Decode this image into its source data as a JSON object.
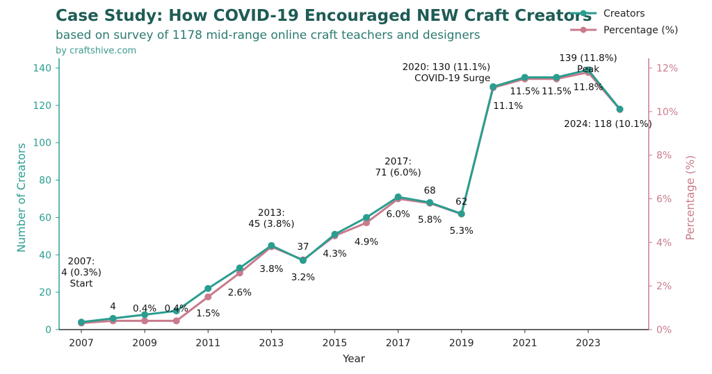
{
  "chart_data": {
    "type": "line",
    "title": "Case Study: How COVID-19 Encouraged NEW Craft Creators",
    "subtitle": "based on survey of 1178 mid-range online craft teachers and designers",
    "source": "by craftshive.com",
    "xlabel": "Year",
    "ylabel": "Number of Creators",
    "y2label": "Percentage (%)",
    "ylim": [
      0,
      145
    ],
    "y2lim": [
      0,
      12.4
    ],
    "xticks": [
      "2007",
      "2009",
      "2011",
      "2013",
      "2015",
      "2017",
      "2019",
      "2021",
      "2023"
    ],
    "yticks": [
      "0",
      "20",
      "40",
      "60",
      "80",
      "100",
      "120",
      "140"
    ],
    "y2ticks": [
      "0%",
      "2%",
      "4%",
      "6%",
      "8%",
      "10%",
      "12%"
    ],
    "grid": false,
    "legend": "top-right",
    "x": [
      2007,
      2008,
      2009,
      2010,
      2011,
      2012,
      2013,
      2014,
      2015,
      2016,
      2017,
      2018,
      2019,
      2020,
      2021,
      2022,
      2023,
      2024
    ],
    "series": [
      {
        "name": "Creators",
        "axis": "left",
        "color": "#2a9d8f",
        "values": [
          4,
          6,
          8,
          10,
          22,
          33,
          45,
          37,
          51,
          60,
          71,
          68,
          62,
          130,
          135,
          135,
          139,
          118
        ]
      },
      {
        "name": "Percentage (%)",
        "axis": "right",
        "color": "#c97b8c",
        "values": [
          0.3,
          0.4,
          0.4,
          0.4,
          1.5,
          2.6,
          3.8,
          3.2,
          4.3,
          4.9,
          6.0,
          5.8,
          5.3,
          11.1,
          11.5,
          11.5,
          11.8,
          10.1
        ]
      }
    ],
    "annotations": [
      {
        "text": [
          "2007:",
          "4 (0.3%)",
          "Start"
        ]
      },
      {
        "text": [
          "4"
        ]
      },
      {
        "text": [
          "0.4%"
        ]
      },
      {
        "text": [
          "0.4%"
        ]
      },
      {
        "text": [
          "1.5%"
        ]
      },
      {
        "text": [
          "2.6%"
        ]
      },
      {
        "text": [
          "2013:",
          "45 (3.8%)"
        ]
      },
      {
        "text": [
          "3.8%"
        ]
      },
      {
        "text": [
          "37"
        ]
      },
      {
        "text": [
          "3.2%"
        ]
      },
      {
        "text": [
          "4.3%"
        ]
      },
      {
        "text": [
          "4.9%"
        ]
      },
      {
        "text": [
          "2017:",
          "71 (6.0%)"
        ]
      },
      {
        "text": [
          "6.0%"
        ]
      },
      {
        "text": [
          "68"
        ]
      },
      {
        "text": [
          "5.8%"
        ]
      },
      {
        "text": [
          "62"
        ]
      },
      {
        "text": [
          "5.3%"
        ]
      },
      {
        "text": [
          "2020: 130 (11.1%)",
          "COVID-19 Surge"
        ]
      },
      {
        "text": [
          "11.1%"
        ]
      },
      {
        "text": [
          "11.5%"
        ]
      },
      {
        "text": [
          "11.5%"
        ]
      },
      {
        "text": [
          "139 (11.8%)",
          "Peak"
        ]
      },
      {
        "text": [
          "11.8%"
        ]
      },
      {
        "text": [
          "2024: 118 (10.1%)"
        ]
      }
    ]
  }
}
